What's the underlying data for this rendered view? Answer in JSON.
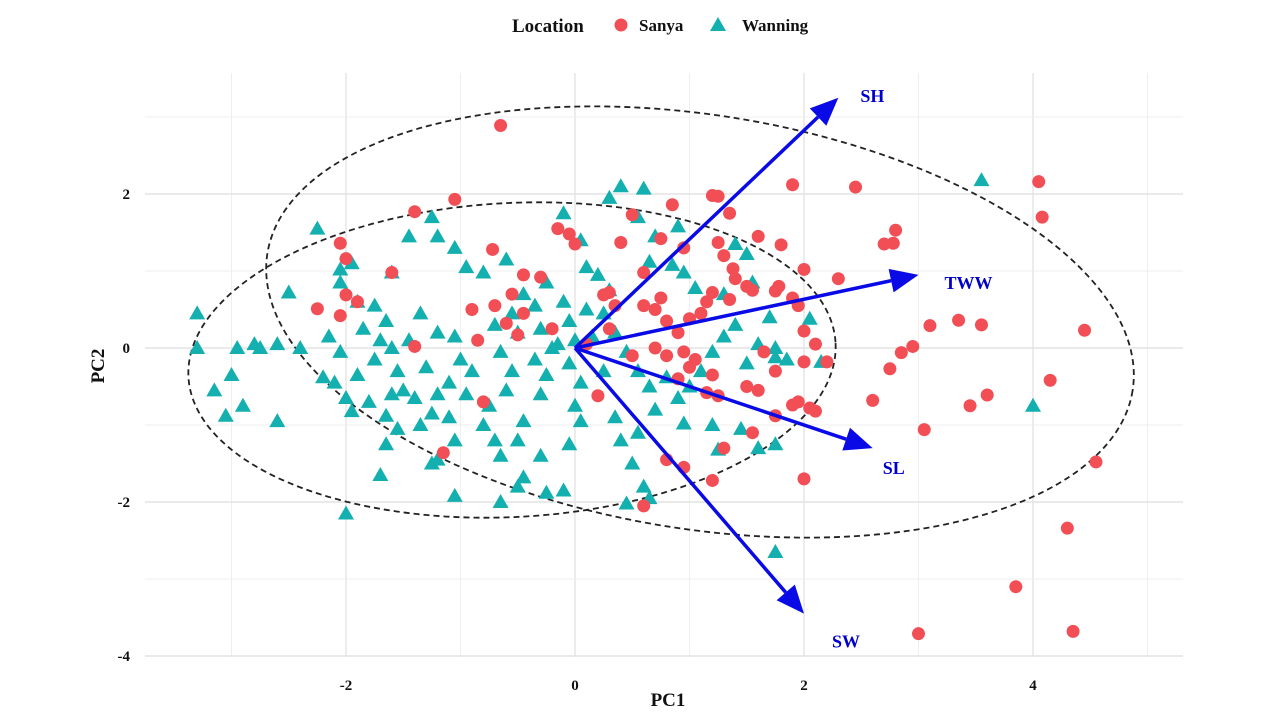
{
  "chart_data": {
    "type": "scatter",
    "title": "",
    "xlabel": "PC1",
    "ylabel": "PC2",
    "xlim": [
      -3.5,
      5.2
    ],
    "ylim": [
      -4.1,
      3.0
    ],
    "x_ticks": [
      -2,
      0,
      2,
      4
    ],
    "y_ticks": [
      2,
      0,
      -2,
      -4
    ],
    "grid": true,
    "legend": {
      "title": "Location",
      "position": "top"
    },
    "colors": {
      "Sanya": "#f24e55",
      "Wanning": "#14afaf",
      "arrows": "#0a0ae6",
      "ellipse": "#222222"
    },
    "series": [
      {
        "name": "Sanya",
        "marker": "circle",
        "points": [
          [
            -0.65,
            2.89
          ],
          [
            -1.05,
            1.93
          ],
          [
            -1.4,
            1.77
          ],
          [
            -2.05,
            1.36
          ],
          [
            -2.0,
            1.16
          ],
          [
            -1.6,
            0.98
          ],
          [
            -2.0,
            0.69
          ],
          [
            -1.9,
            0.6
          ],
          [
            -2.25,
            0.51
          ],
          [
            -2.05,
            0.42
          ],
          [
            -0.72,
            1.28
          ],
          [
            -0.45,
            0.95
          ],
          [
            -0.3,
            0.92
          ],
          [
            -0.55,
            0.7
          ],
          [
            -0.7,
            0.55
          ],
          [
            -0.9,
            0.5
          ],
          [
            -0.45,
            0.45
          ],
          [
            -0.6,
            0.32
          ],
          [
            -0.2,
            0.25
          ],
          [
            -0.85,
            0.1
          ],
          [
            -0.5,
            0.17
          ],
          [
            -1.4,
            0.02
          ],
          [
            -0.8,
            -0.7
          ],
          [
            -1.15,
            -1.36
          ],
          [
            -0.15,
            1.55
          ],
          [
            -0.05,
            1.48
          ],
          [
            0.0,
            1.35
          ],
          [
            0.5,
            1.73
          ],
          [
            0.85,
            1.86
          ],
          [
            1.2,
            1.98
          ],
          [
            1.25,
            1.97
          ],
          [
            1.35,
            1.75
          ],
          [
            0.4,
            1.37
          ],
          [
            0.75,
            1.42
          ],
          [
            0.95,
            1.3
          ],
          [
            0.6,
            0.98
          ],
          [
            0.3,
            0.72
          ],
          [
            0.35,
            0.55
          ],
          [
            0.6,
            0.55
          ],
          [
            0.7,
            0.5
          ],
          [
            0.75,
            0.65
          ],
          [
            0.25,
            0.69
          ],
          [
            0.8,
            0.35
          ],
          [
            0.9,
            0.2
          ],
          [
            1.0,
            0.38
          ],
          [
            1.1,
            0.45
          ],
          [
            1.15,
            0.6
          ],
          [
            1.2,
            0.72
          ],
          [
            1.35,
            0.63
          ],
          [
            1.4,
            0.9
          ],
          [
            1.5,
            0.8
          ],
          [
            1.6,
            1.45
          ],
          [
            1.8,
            1.34
          ],
          [
            1.25,
            1.37
          ],
          [
            1.3,
            1.2
          ],
          [
            1.38,
            1.03
          ],
          [
            1.55,
            0.75
          ],
          [
            1.75,
            0.74
          ],
          [
            1.78,
            0.8
          ],
          [
            1.9,
            0.65
          ],
          [
            1.95,
            0.55
          ],
          [
            2.0,
            1.02
          ],
          [
            2.3,
            0.9
          ],
          [
            1.9,
            2.12
          ],
          [
            2.45,
            2.09
          ],
          [
            2.7,
            1.35
          ],
          [
            2.78,
            1.36
          ],
          [
            2.8,
            1.53
          ],
          [
            2.0,
            0.22
          ],
          [
            2.1,
            0.05
          ],
          [
            2.0,
            -0.18
          ],
          [
            2.2,
            -0.18
          ],
          [
            1.75,
            -0.3
          ],
          [
            1.5,
            -0.5
          ],
          [
            1.2,
            -0.35
          ],
          [
            1.05,
            -0.15
          ],
          [
            0.95,
            -0.05
          ],
          [
            0.8,
            -0.1
          ],
          [
            0.9,
            -0.4
          ],
          [
            1.15,
            -0.58
          ],
          [
            1.25,
            -0.62
          ],
          [
            1.6,
            -0.55
          ],
          [
            1.95,
            -0.7
          ],
          [
            1.9,
            -0.74
          ],
          [
            2.1,
            -0.82
          ],
          [
            2.05,
            -0.78
          ],
          [
            1.75,
            -0.88
          ],
          [
            1.55,
            -1.1
          ],
          [
            1.3,
            -1.3
          ],
          [
            1.2,
            -1.72
          ],
          [
            0.8,
            -1.45
          ],
          [
            0.95,
            -1.55
          ],
          [
            2.0,
            -1.7
          ],
          [
            0.6,
            -2.05
          ],
          [
            0.2,
            -0.62
          ],
          [
            2.75,
            -0.27
          ],
          [
            2.6,
            -0.68
          ],
          [
            2.85,
            -0.06
          ],
          [
            2.95,
            0.02
          ],
          [
            3.1,
            0.29
          ],
          [
            3.35,
            0.36
          ],
          [
            3.55,
            0.3
          ],
          [
            3.05,
            -1.06
          ],
          [
            3.45,
            -0.75
          ],
          [
            3.6,
            -0.61
          ],
          [
            4.05,
            2.16
          ],
          [
            4.08,
            1.7
          ],
          [
            4.15,
            -0.42
          ],
          [
            4.45,
            0.23
          ],
          [
            4.55,
            -1.48
          ],
          [
            4.3,
            -2.34
          ],
          [
            3.85,
            -3.1
          ],
          [
            4.35,
            -3.68
          ],
          [
            3.0,
            -3.71
          ],
          [
            0.3,
            0.25
          ],
          [
            0.1,
            0.05
          ],
          [
            0.5,
            -0.1
          ],
          [
            0.7,
            0.0
          ],
          [
            1.0,
            -0.25
          ],
          [
            1.65,
            -0.05
          ]
        ]
      },
      {
        "name": "Wanning",
        "marker": "triangle",
        "points": [
          [
            -3.3,
            0.45
          ],
          [
            -3.3,
            0.0
          ],
          [
            -3.0,
            -0.35
          ],
          [
            -2.95,
            0.0
          ],
          [
            -2.8,
            0.05
          ],
          [
            -2.75,
            0.0
          ],
          [
            -2.6,
            0.05
          ],
          [
            -2.4,
            0.0
          ],
          [
            -2.5,
            0.72
          ],
          [
            -2.15,
            0.15
          ],
          [
            -3.15,
            -0.55
          ],
          [
            -2.9,
            -0.75
          ],
          [
            -3.05,
            -0.88
          ],
          [
            -2.6,
            -0.95
          ],
          [
            -2.1,
            -0.45
          ],
          [
            -2.2,
            -0.38
          ],
          [
            -2.0,
            -0.65
          ],
          [
            -1.95,
            -0.82
          ],
          [
            -1.9,
            -0.35
          ],
          [
            -2.05,
            -0.05
          ],
          [
            -2.25,
            1.55
          ],
          [
            -2.05,
            1.02
          ],
          [
            -1.95,
            1.1
          ],
          [
            -2.05,
            0.85
          ],
          [
            -1.9,
            0.6
          ],
          [
            -1.75,
            0.55
          ],
          [
            -1.65,
            0.35
          ],
          [
            -1.85,
            0.25
          ],
          [
            -1.7,
            0.1
          ],
          [
            -1.75,
            -0.15
          ],
          [
            -1.6,
            0.0
          ],
          [
            -1.55,
            -0.3
          ],
          [
            -1.5,
            -0.55
          ],
          [
            -1.8,
            -0.7
          ],
          [
            -1.65,
            -0.88
          ],
          [
            -1.55,
            -1.05
          ],
          [
            -1.35,
            -1.0
          ],
          [
            -1.25,
            -0.85
          ],
          [
            -1.2,
            -0.6
          ],
          [
            -1.1,
            -0.45
          ],
          [
            -1.35,
            0.45
          ],
          [
            -1.45,
            0.1
          ],
          [
            -1.3,
            -0.25
          ],
          [
            -1.4,
            -0.65
          ],
          [
            -1.05,
            0.15
          ],
          [
            -1.0,
            -0.15
          ],
          [
            -0.95,
            -0.6
          ],
          [
            -1.1,
            -0.9
          ],
          [
            -1.05,
            -1.2
          ],
          [
            -1.2,
            -1.45
          ],
          [
            -1.45,
            1.45
          ],
          [
            -1.6,
            0.98
          ],
          [
            -1.25,
            1.7
          ],
          [
            -1.2,
            1.45
          ],
          [
            -1.05,
            1.3
          ],
          [
            -0.95,
            1.05
          ],
          [
            -0.8,
            0.98
          ],
          [
            -0.6,
            1.15
          ],
          [
            -0.45,
            0.7
          ],
          [
            -0.55,
            0.45
          ],
          [
            -0.5,
            0.2
          ],
          [
            -0.65,
            -0.05
          ],
          [
            -0.55,
            -0.3
          ],
          [
            -0.6,
            -0.55
          ],
          [
            -0.75,
            -0.75
          ],
          [
            -0.8,
            -1.0
          ],
          [
            -0.7,
            -1.2
          ],
          [
            -0.65,
            -1.4
          ],
          [
            -0.5,
            -1.2
          ],
          [
            -0.45,
            -0.95
          ],
          [
            -0.3,
            -0.6
          ],
          [
            -0.25,
            -0.35
          ],
          [
            -0.2,
            0.0
          ],
          [
            -0.3,
            0.25
          ],
          [
            -0.35,
            0.55
          ],
          [
            -0.25,
            0.85
          ],
          [
            -0.1,
            0.6
          ],
          [
            -0.05,
            0.35
          ],
          [
            0.0,
            0.1
          ],
          [
            -0.05,
            -0.2
          ],
          [
            0.05,
            -0.45
          ],
          [
            0.0,
            -0.75
          ],
          [
            -0.05,
            -1.25
          ],
          [
            -0.1,
            -1.85
          ],
          [
            -0.25,
            -1.88
          ],
          [
            -0.45,
            -1.68
          ],
          [
            -0.5,
            -1.8
          ],
          [
            -0.65,
            -2.0
          ],
          [
            -1.05,
            -1.92
          ],
          [
            -1.25,
            -1.5
          ],
          [
            -1.65,
            -1.25
          ],
          [
            -1.7,
            -1.65
          ],
          [
            -2.0,
            -2.15
          ],
          [
            0.05,
            1.4
          ],
          [
            0.1,
            1.05
          ],
          [
            -0.1,
            1.75
          ],
          [
            0.3,
            1.95
          ],
          [
            0.4,
            2.1
          ],
          [
            0.6,
            2.07
          ],
          [
            0.55,
            1.7
          ],
          [
            0.7,
            1.45
          ],
          [
            0.65,
            1.12
          ],
          [
            0.9,
            1.58
          ],
          [
            0.85,
            1.08
          ],
          [
            0.95,
            0.98
          ],
          [
            1.05,
            0.78
          ],
          [
            1.3,
            0.7
          ],
          [
            1.4,
            1.35
          ],
          [
            1.5,
            1.22
          ],
          [
            1.55,
            0.85
          ],
          [
            0.3,
            0.75
          ],
          [
            0.25,
            0.45
          ],
          [
            0.35,
            0.2
          ],
          [
            0.45,
            -0.05
          ],
          [
            0.55,
            -0.3
          ],
          [
            0.65,
            -0.5
          ],
          [
            0.7,
            -0.8
          ],
          [
            0.8,
            -0.38
          ],
          [
            0.9,
            -0.65
          ],
          [
            1.0,
            -0.5
          ],
          [
            1.1,
            -0.3
          ],
          [
            1.2,
            -0.05
          ],
          [
            1.3,
            0.15
          ],
          [
            1.4,
            0.3
          ],
          [
            1.5,
            -0.2
          ],
          [
            1.6,
            0.05
          ],
          [
            1.7,
            0.4
          ],
          [
            1.75,
            0.0
          ],
          [
            1.85,
            -0.15
          ],
          [
            2.05,
            0.38
          ],
          [
            2.15,
            -0.18
          ],
          [
            1.75,
            -0.12
          ],
          [
            0.95,
            -0.98
          ],
          [
            1.2,
            -1.0
          ],
          [
            1.25,
            -1.32
          ],
          [
            1.45,
            -1.05
          ],
          [
            1.75,
            -1.25
          ],
          [
            1.6,
            -1.3
          ],
          [
            1.75,
            -2.65
          ],
          [
            0.6,
            -1.8
          ],
          [
            0.5,
            -1.5
          ],
          [
            0.4,
            -1.2
          ],
          [
            0.45,
            -2.02
          ],
          [
            0.65,
            -1.95
          ],
          [
            0.55,
            -1.1
          ],
          [
            0.35,
            -0.9
          ],
          [
            0.25,
            -0.3
          ],
          [
            0.15,
            0.15
          ],
          [
            0.1,
            0.5
          ],
          [
            0.2,
            0.95
          ],
          [
            3.55,
            2.18
          ],
          [
            4.0,
            -0.75
          ],
          [
            -0.15,
            0.05
          ],
          [
            -0.35,
            -0.15
          ],
          [
            -0.7,
            0.3
          ],
          [
            -0.9,
            -0.3
          ],
          [
            -1.2,
            0.2
          ],
          [
            -1.6,
            -0.6
          ],
          [
            -0.3,
            -1.4
          ],
          [
            0.05,
            -0.95
          ]
        ]
      }
    ],
    "loadings": [
      {
        "name": "SH",
        "x": 2.3,
        "y": 3.25
      },
      {
        "name": "TWW",
        "x": 3.0,
        "y": 0.95
      },
      {
        "name": "SL",
        "x": 2.6,
        "y": -1.3
      },
      {
        "name": "SW",
        "x": 2.0,
        "y": -3.45
      }
    ]
  }
}
